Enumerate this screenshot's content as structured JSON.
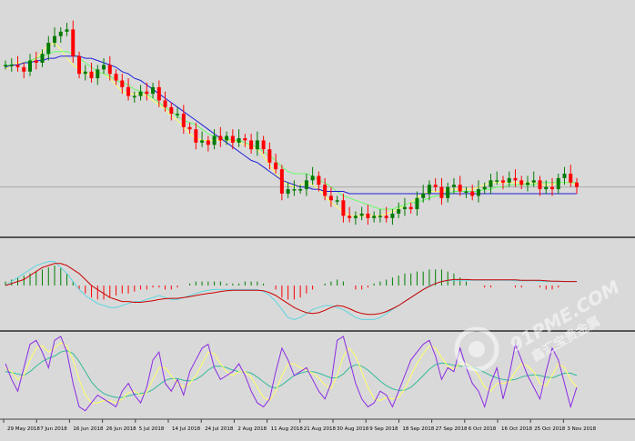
{
  "colors": {
    "background": "#d9d9d9",
    "bull": "#007a00",
    "bear": "#ff0000",
    "ma_fast": "#ffff66",
    "ma_mid": "#66ff66",
    "ma_slow": "#1f1fd9",
    "price_line": "#aaaaaa",
    "separator": "#555555",
    "macd_hist_pos": "#008000",
    "macd_hist_neg": "#ff0000",
    "macd_line": "#5ed6e0",
    "signal_line": "#cc0000",
    "stoch_main": "#8a2be2",
    "stoch_signal1": "#ffff66",
    "stoch_signal2": "#33bb99"
  },
  "watermark": {
    "text": "91PME.COM",
    "sub": "鑫汇宝贵金属",
    "icon": "logo-icon"
  },
  "chart_data": [
    {
      "type": "candlestick",
      "panel": "price",
      "title": "",
      "xlabel": "",
      "ylabel": "",
      "grid": false,
      "ylim": [
        0,
        100
      ],
      "x_labels": [
        "29 May 2018",
        "7 Jun 2018",
        "16 Jun 2018",
        "26 Jun 2018",
        "5 Jul 2018",
        "14 Jul 2018",
        "24 Jul 2018",
        "2 Aug 2018",
        "11 Aug 2018",
        "21 Aug 2018",
        "30 Aug 2018",
        "9 Sep 2018",
        "18 Sep 2018",
        "27 Sep 2018",
        "6 Oct 2018",
        "16 Oct 2018",
        "25 Oct 2018",
        "3 Nov 2018"
      ],
      "closes": [
        74,
        74,
        73,
        71,
        76,
        75,
        79,
        84,
        87,
        89,
        90,
        78,
        70,
        71,
        68,
        72,
        74,
        70,
        67,
        64,
        60,
        60,
        62,
        61,
        64,
        58,
        55,
        52,
        52,
        46,
        45,
        39,
        40,
        38,
        42,
        40,
        42,
        39,
        41,
        40,
        36,
        40,
        36,
        30,
        27,
        16,
        18,
        18,
        18,
        22,
        24,
        20,
        15,
        13,
        13,
        6,
        5,
        6,
        7,
        5,
        6,
        6,
        5,
        7,
        9,
        10,
        9,
        14,
        16,
        20,
        19,
        14,
        19,
        20,
        17,
        17,
        15,
        18,
        19,
        22,
        22,
        21,
        23,
        22,
        20,
        21,
        22,
        18,
        19,
        18,
        23,
        25,
        21,
        19
      ],
      "series": [
        {
          "name": "",
          "color_key": "ma_fast",
          "values": [
            72,
            74,
            75,
            75,
            75,
            77,
            80,
            83,
            84,
            81,
            77,
            74,
            72,
            70,
            70,
            71,
            70,
            68,
            65,
            62,
            61,
            61,
            61,
            60,
            58,
            56,
            54,
            51,
            49,
            46,
            43,
            41,
            40,
            40,
            40,
            40,
            40,
            40,
            39,
            38,
            37,
            36,
            33,
            29,
            25,
            22,
            20,
            19,
            20,
            21,
            20,
            18,
            15,
            12,
            10,
            8,
            6,
            6,
            6,
            6,
            6,
            6,
            7,
            8,
            9,
            11,
            12,
            14,
            16,
            17,
            17,
            17,
            18,
            18,
            18,
            18,
            18,
            19,
            20,
            21,
            21,
            21,
            21,
            21,
            21,
            21,
            21,
            20,
            20,
            20,
            21,
            21,
            21,
            20
          ]
        },
        {
          "name": "",
          "color_key": "ma_mid",
          "values": [
            74,
            74,
            74,
            75,
            76,
            77,
            78,
            79,
            80,
            80,
            80,
            79,
            77,
            75,
            73,
            71,
            70,
            69,
            67,
            66,
            65,
            63,
            62,
            61,
            59,
            57,
            55,
            53,
            51,
            49,
            48,
            47,
            45,
            43,
            42,
            41,
            41,
            40,
            40,
            39,
            38,
            37,
            35,
            33,
            31,
            28,
            26,
            25,
            25,
            25,
            24,
            22,
            21,
            19,
            17,
            15,
            14,
            13,
            12,
            11,
            10,
            9,
            9,
            9,
            10,
            11,
            12,
            12,
            13,
            14,
            15,
            15,
            16,
            17,
            17,
            17,
            17,
            17,
            18,
            18,
            19,
            19,
            20,
            20,
            20,
            20,
            20,
            21,
            21,
            21,
            21,
            21,
            21,
            21
          ]
        },
        {
          "name": "",
          "color_key": "ma_slow",
          "values": [
            73,
            74,
            74,
            75,
            75,
            76,
            76,
            77,
            77,
            78,
            78,
            78,
            78,
            77,
            77,
            76,
            75,
            74,
            73,
            71,
            70,
            68,
            67,
            65,
            63,
            61,
            59,
            57,
            55,
            53,
            51,
            49,
            47,
            45,
            43,
            41,
            39,
            37,
            35,
            33,
            31,
            30,
            28,
            26,
            24,
            22,
            21,
            20,
            19,
            19,
            18,
            18,
            17,
            17,
            17,
            17,
            16,
            16,
            16,
            16,
            16,
            16,
            16,
            16,
            16,
            16,
            16,
            16,
            16,
            16,
            16,
            16,
            16,
            16,
            16,
            16,
            16,
            16,
            16,
            16,
            16,
            16,
            16,
            16,
            16,
            16,
            16,
            16,
            16,
            16,
            16,
            16,
            16,
            16
          ]
        }
      ]
    },
    {
      "type": "histogram+line",
      "panel": "macd",
      "title": "",
      "xlabel": "",
      "ylabel": "",
      "grid": false,
      "ylim": [
        -1,
        1
      ],
      "histogram": [
        0.1,
        0.15,
        0.2,
        0.25,
        0.3,
        0.35,
        0.4,
        0.45,
        0.5,
        0.45,
        0.3,
        0.1,
        -0.1,
        -0.2,
        -0.3,
        -0.35,
        -0.35,
        -0.3,
        -0.25,
        -0.2,
        -0.2,
        -0.15,
        -0.1,
        -0.1,
        -0.05,
        -0.05,
        -0.1,
        -0.1,
        -0.05,
        0.0,
        0.05,
        0.1,
        0.1,
        0.1,
        0.1,
        0.1,
        0.05,
        0.05,
        0.05,
        0.1,
        0.1,
        0.1,
        0.05,
        0.0,
        -0.1,
        -0.3,
        -0.35,
        -0.35,
        -0.3,
        -0.2,
        -0.1,
        0.0,
        0.05,
        0.1,
        0.15,
        0.1,
        0.0,
        -0.1,
        -0.1,
        -0.05,
        0.05,
        0.1,
        0.15,
        0.2,
        0.25,
        0.3,
        0.3,
        0.35,
        0.35,
        0.4,
        0.4,
        0.4,
        0.35,
        0.3,
        0.2,
        0.1,
        0.0,
        0.0,
        -0.05,
        -0.05,
        0.0,
        0.0,
        0.0,
        -0.05,
        -0.05,
        0.0,
        0.0,
        -0.05,
        -0.1,
        -0.1,
        -0.05,
        0.0,
        0.0,
        0.0
      ],
      "series": [
        {
          "name": "",
          "color_key": "macd_line",
          "values": [
            0.0,
            0.1,
            0.2,
            0.3,
            0.4,
            0.5,
            0.55,
            0.6,
            0.6,
            0.45,
            0.3,
            0.1,
            -0.1,
            -0.25,
            -0.35,
            -0.45,
            -0.5,
            -0.55,
            -0.55,
            -0.5,
            -0.45,
            -0.4,
            -0.4,
            -0.35,
            -0.3,
            -0.25,
            -0.3,
            -0.35,
            -0.35,
            -0.3,
            -0.25,
            -0.2,
            -0.15,
            -0.12,
            -0.1,
            -0.1,
            -0.1,
            -0.1,
            -0.1,
            -0.1,
            -0.1,
            -0.1,
            -0.15,
            -0.25,
            -0.4,
            -0.6,
            -0.8,
            -0.85,
            -0.8,
            -0.7,
            -0.6,
            -0.55,
            -0.5,
            -0.5,
            -0.55,
            -0.6,
            -0.7,
            -0.8,
            -0.85,
            -0.85,
            -0.85,
            -0.8,
            -0.7,
            -0.6,
            -0.5,
            -0.4,
            -0.3,
            -0.2,
            -0.1,
            0.0,
            0.05,
            0.1,
            0.12,
            0.13,
            0.13,
            0.13,
            0.13,
            0.13,
            0.13,
            0.13,
            0.13,
            0.13,
            0.13,
            0.12,
            0.12,
            0.12,
            0.12,
            0.11,
            0.1,
            0.1,
            0.1,
            0.1,
            0.1,
            0.1
          ]
        },
        {
          "name": "",
          "color_key": "signal_line",
          "values": [
            0.0,
            0.05,
            0.1,
            0.15,
            0.25,
            0.35,
            0.45,
            0.5,
            0.55,
            0.55,
            0.5,
            0.4,
            0.3,
            0.15,
            0.0,
            -0.1,
            -0.2,
            -0.3,
            -0.35,
            -0.4,
            -0.4,
            -0.42,
            -0.42,
            -0.4,
            -0.38,
            -0.35,
            -0.33,
            -0.32,
            -0.32,
            -0.3,
            -0.28,
            -0.25,
            -0.22,
            -0.2,
            -0.18,
            -0.15,
            -0.13,
            -0.12,
            -0.12,
            -0.12,
            -0.12,
            -0.12,
            -0.13,
            -0.18,
            -0.25,
            -0.35,
            -0.45,
            -0.55,
            -0.62,
            -0.68,
            -0.7,
            -0.68,
            -0.62,
            -0.55,
            -0.5,
            -0.52,
            -0.58,
            -0.65,
            -0.7,
            -0.72,
            -0.72,
            -0.7,
            -0.65,
            -0.58,
            -0.5,
            -0.4,
            -0.3,
            -0.2,
            -0.1,
            -0.02,
            0.05,
            0.1,
            0.13,
            0.15,
            0.15,
            0.15,
            0.14,
            0.14,
            0.14,
            0.14,
            0.14,
            0.14,
            0.14,
            0.14,
            0.13,
            0.13,
            0.13,
            0.13,
            0.12,
            0.11,
            0.11,
            0.1,
            0.1,
            0.1
          ]
        }
      ]
    },
    {
      "type": "line",
      "panel": "stochastic",
      "title": "",
      "xlabel": "",
      "ylabel": "",
      "grid": false,
      "ylim": [
        0,
        100
      ],
      "series": [
        {
          "name": "",
          "color_key": "stoch_main",
          "values": [
            65,
            45,
            30,
            60,
            90,
            95,
            80,
            60,
            95,
            100,
            80,
            40,
            10,
            5,
            15,
            25,
            20,
            15,
            10,
            30,
            40,
            25,
            15,
            35,
            70,
            80,
            40,
            30,
            45,
            25,
            55,
            70,
            85,
            90,
            60,
            45,
            50,
            55,
            65,
            50,
            30,
            15,
            10,
            20,
            55,
            85,
            70,
            50,
            55,
            60,
            45,
            30,
            20,
            40,
            95,
            100,
            70,
            40,
            20,
            10,
            15,
            30,
            25,
            10,
            30,
            50,
            70,
            80,
            90,
            95,
            75,
            45,
            60,
            55,
            85,
            60,
            40,
            30,
            10,
            40,
            60,
            20,
            50,
            90,
            70,
            50,
            35,
            20,
            55,
            85,
            70,
            40,
            10,
            35
          ]
        },
        {
          "name": "",
          "color_key": "stoch_signal1",
          "values": [
            60,
            55,
            45,
            50,
            70,
            85,
            88,
            80,
            85,
            92,
            88,
            70,
            45,
            25,
            15,
            15,
            18,
            18,
            15,
            20,
            28,
            30,
            25,
            28,
            45,
            60,
            60,
            50,
            40,
            35,
            40,
            50,
            65,
            80,
            78,
            65,
            55,
            50,
            55,
            55,
            48,
            35,
            22,
            18,
            30,
            50,
            65,
            65,
            60,
            57,
            53,
            47,
            38,
            33,
            50,
            75,
            85,
            75,
            55,
            35,
            20,
            18,
            22,
            20,
            22,
            33,
            50,
            65,
            78,
            88,
            85,
            73,
            62,
            58,
            65,
            65,
            60,
            50,
            35,
            30,
            40,
            40,
            42,
            55,
            65,
            62,
            55,
            40,
            37,
            50,
            65,
            60,
            45,
            35
          ]
        },
        {
          "name": "",
          "color_key": "stoch_signal2",
          "values": [
            55,
            54,
            52,
            50,
            55,
            62,
            68,
            72,
            75,
            80,
            82,
            78,
            68,
            55,
            42,
            33,
            27,
            24,
            22,
            22,
            24,
            26,
            27,
            28,
            32,
            38,
            44,
            46,
            46,
            44,
            43,
            45,
            50,
            57,
            62,
            62,
            60,
            57,
            55,
            55,
            53,
            48,
            42,
            36,
            34,
            38,
            44,
            50,
            53,
            55,
            55,
            53,
            50,
            47,
            47,
            52,
            60,
            64,
            62,
            57,
            50,
            43,
            37,
            33,
            31,
            31,
            35,
            42,
            50,
            58,
            64,
            66,
            65,
            63,
            62,
            62,
            61,
            58,
            54,
            50,
            47,
            45,
            44,
            45,
            48,
            50,
            51,
            50,
            48,
            47,
            50,
            53,
            53,
            50
          ]
        }
      ]
    }
  ]
}
